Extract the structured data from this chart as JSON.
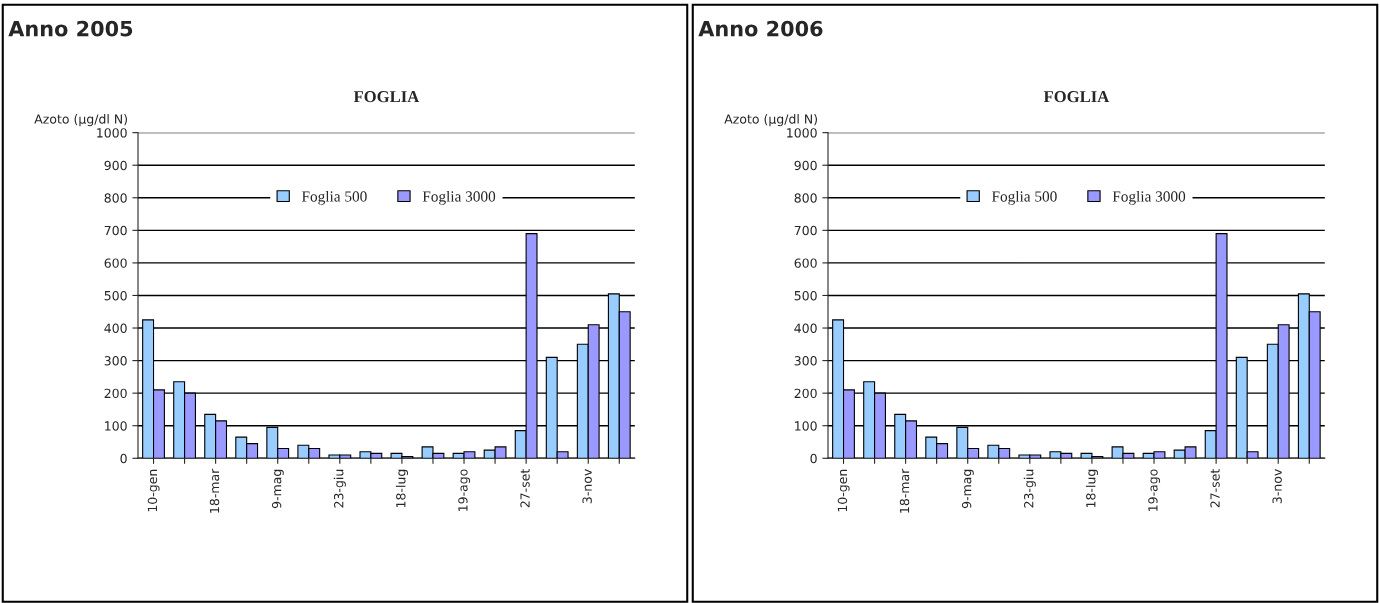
{
  "chart_data": [
    {
      "type": "bar",
      "title": "Anno 2005",
      "subtitle": "FOGLIA",
      "ylabel": "Azoto (µg/dl N)",
      "categories": [
        "10-gen",
        null,
        "18-mar",
        null,
        "9-mag",
        null,
        "23-giu",
        null,
        "18-lug",
        null,
        "19-ago",
        null,
        "27-set",
        null,
        "3-nov",
        null
      ],
      "series": [
        {
          "name": "Foglia 500",
          "color": "#99ccff",
          "values": [
            425,
            235,
            135,
            65,
            95,
            40,
            10,
            20,
            15,
            35,
            15,
            25,
            85,
            310,
            350,
            505
          ]
        },
        {
          "name": "Foglia 3000",
          "color": "#9999ff",
          "values": [
            210,
            200,
            115,
            45,
            30,
            30,
            10,
            15,
            5,
            15,
            20,
            35,
            690,
            20,
            410,
            450
          ]
        }
      ],
      "ylim": [
        0,
        1000
      ],
      "yticks": [
        0,
        100,
        200,
        300,
        400,
        500,
        600,
        700,
        800,
        900,
        1000
      ],
      "grid": "y",
      "legend": "top"
    },
    {
      "type": "bar",
      "title": "Anno 2006",
      "subtitle": "FOGLIA",
      "ylabel": "Azoto (µg/dl N)",
      "categories": [
        "10-gen",
        null,
        "18-mar",
        null,
        "9-mag",
        null,
        "23-giu",
        null,
        "18-lug",
        null,
        "19-ago",
        null,
        "27-set",
        null,
        "3-nov",
        null
      ],
      "series": [
        {
          "name": "Foglia 500",
          "color": "#99ccff",
          "values": [
            425,
            235,
            135,
            65,
            95,
            40,
            10,
            20,
            15,
            35,
            15,
            25,
            85,
            310,
            350,
            505
          ]
        },
        {
          "name": "Foglia 3000",
          "color": "#9999ff",
          "values": [
            210,
            200,
            115,
            45,
            30,
            30,
            10,
            15,
            5,
            15,
            20,
            35,
            690,
            20,
            410,
            450
          ]
        }
      ],
      "ylim": [
        0,
        1000
      ],
      "yticks": [
        0,
        100,
        200,
        300,
        400,
        500,
        600,
        700,
        800,
        900,
        1000
      ],
      "grid": "y",
      "legend": "top"
    }
  ]
}
